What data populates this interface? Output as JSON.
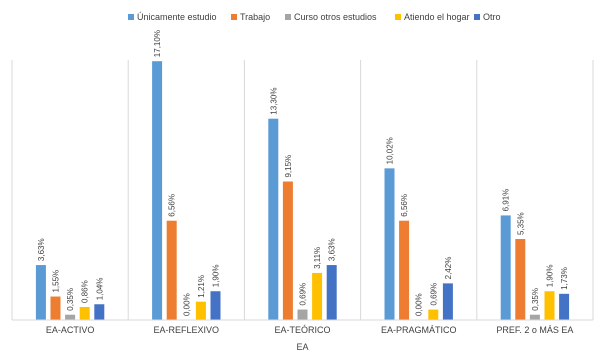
{
  "chart_data": {
    "type": "bar",
    "title": "",
    "xlabel": "EA",
    "ylabel": "",
    "ylim": [
      0,
      18.5
    ],
    "grid": false,
    "legend_position": "top",
    "categories": [
      "EA-ACTIVO",
      "EA-REFLEXIVO",
      "EA-TEÓRICO",
      "EA-PRAGMÁTICO",
      "PREF. 2 o MÁS EA"
    ],
    "series": [
      {
        "name": "Únicamente estudio",
        "color": "#5B9BD5",
        "values": [
          3.63,
          17.1,
          13.3,
          10.02,
          6.91
        ],
        "labels": [
          "3,63%",
          "17,10%",
          "13,30%",
          "10,02%",
          "6,91%"
        ]
      },
      {
        "name": "Trabajo",
        "color": "#ED7D31",
        "values": [
          1.55,
          6.56,
          9.15,
          6.56,
          5.35
        ],
        "labels": [
          "1,55%",
          "6,56%",
          "9,15%",
          "6,56%",
          "5,35%"
        ]
      },
      {
        "name": "Curso otros estudios",
        "color": "#A5A5A5",
        "values": [
          0.35,
          0.0,
          0.69,
          0.0,
          0.35
        ],
        "labels": [
          "0,35%",
          "0,00%",
          "0,69%",
          "0,00%",
          "0,35%"
        ]
      },
      {
        "name": "Atiendo el hogar",
        "color": "#FFC000",
        "values": [
          0.86,
          1.21,
          3.11,
          0.69,
          1.9
        ],
        "labels": [
          "0,86%",
          "1,21%",
          "3,11%",
          "0,69%",
          "1,90%"
        ]
      },
      {
        "name": "Otro",
        "color": "#4472C4",
        "values": [
          1.04,
          1.9,
          3.63,
          2.42,
          1.73
        ],
        "labels": [
          "1,04%",
          "1,90%",
          "3,63%",
          "2,42%",
          "1,73%"
        ]
      }
    ]
  }
}
